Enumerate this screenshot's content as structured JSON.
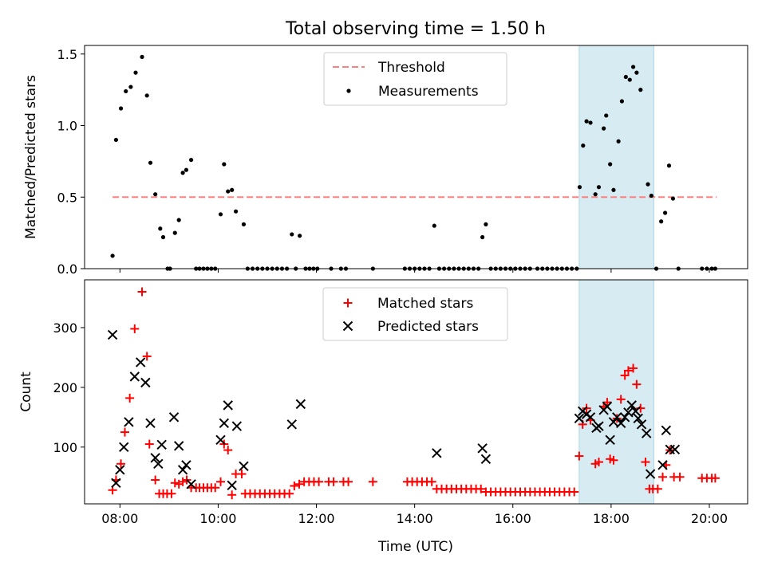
{
  "figure": {
    "title": "Total observing time = 1.50 h",
    "xlabel": "Time (UTC)",
    "xticks": [
      {
        "h": 8,
        "label": "08:00"
      },
      {
        "h": 10,
        "label": "10:00"
      },
      {
        "h": 12,
        "label": "12:00"
      },
      {
        "h": 14,
        "label": "14:00"
      },
      {
        "h": 16,
        "label": "16:00"
      },
      {
        "h": 18,
        "label": "18:00"
      },
      {
        "h": 20,
        "label": "20:00"
      }
    ],
    "xlim": [
      7.28,
      20.78
    ],
    "highlight": {
      "start": 17.35,
      "end": 18.87,
      "color": "#add8e6"
    }
  },
  "chart_data": [
    {
      "type": "scatter",
      "ylabel": "Matched/Predicted stars",
      "ylim": [
        0,
        1.56
      ],
      "yticks": [
        0.0,
        0.5,
        1.0,
        1.5
      ],
      "ytick_labels": [
        "0.0",
        "0.5",
        "1.0",
        "1.5"
      ],
      "legend": {
        "position": "upper-center",
        "threshold_label": "Threshold",
        "measurements_label": "Measurements"
      },
      "threshold": {
        "value": 0.5,
        "x_start": 7.85,
        "x_end": 20.15,
        "color": "#ff7f7f"
      },
      "measurements": [
        [
          7.85,
          0.09
        ],
        [
          7.92,
          0.9
        ],
        [
          8.02,
          1.12
        ],
        [
          8.12,
          1.24
        ],
        [
          8.22,
          1.27
        ],
        [
          8.32,
          1.37
        ],
        [
          8.45,
          1.48
        ],
        [
          8.55,
          1.21
        ],
        [
          8.62,
          0.74
        ],
        [
          8.72,
          0.52
        ],
        [
          8.82,
          0.28
        ],
        [
          8.88,
          0.22
        ],
        [
          8.97,
          0.0
        ],
        [
          9.02,
          0.0
        ],
        [
          9.12,
          0.25
        ],
        [
          9.2,
          0.34
        ],
        [
          9.28,
          0.67
        ],
        [
          9.35,
          0.69
        ],
        [
          9.45,
          0.76
        ],
        [
          9.55,
          0.0
        ],
        [
          9.62,
          0.0
        ],
        [
          9.7,
          0.0
        ],
        [
          9.78,
          0.0
        ],
        [
          9.86,
          0.0
        ],
        [
          9.94,
          0.0
        ],
        [
          10.05,
          0.38
        ],
        [
          10.12,
          0.73
        ],
        [
          10.2,
          0.54
        ],
        [
          10.28,
          0.55
        ],
        [
          10.36,
          0.4
        ],
        [
          10.52,
          0.31
        ],
        [
          10.6,
          0.0
        ],
        [
          10.7,
          0.0
        ],
        [
          10.8,
          0.0
        ],
        [
          10.9,
          0.0
        ],
        [
          11.0,
          0.0
        ],
        [
          11.1,
          0.0
        ],
        [
          11.2,
          0.0
        ],
        [
          11.3,
          0.0
        ],
        [
          11.4,
          0.0
        ],
        [
          11.5,
          0.24
        ],
        [
          11.58,
          0.0
        ],
        [
          11.66,
          0.23
        ],
        [
          11.78,
          0.0
        ],
        [
          11.86,
          0.0
        ],
        [
          11.94,
          0.0
        ],
        [
          12.02,
          0.0
        ],
        [
          12.3,
          0.0
        ],
        [
          12.5,
          0.0
        ],
        [
          12.6,
          0.0
        ],
        [
          13.15,
          0.0
        ],
        [
          13.8,
          0.0
        ],
        [
          13.9,
          0.0
        ],
        [
          14.0,
          0.0
        ],
        [
          14.1,
          0.0
        ],
        [
          14.2,
          0.0
        ],
        [
          14.3,
          0.0
        ],
        [
          14.4,
          0.3
        ],
        [
          14.5,
          0.0
        ],
        [
          14.6,
          0.0
        ],
        [
          14.7,
          0.0
        ],
        [
          14.8,
          0.0
        ],
        [
          14.9,
          0.0
        ],
        [
          15.0,
          0.0
        ],
        [
          15.1,
          0.0
        ],
        [
          15.2,
          0.0
        ],
        [
          15.3,
          0.0
        ],
        [
          15.38,
          0.22
        ],
        [
          15.45,
          0.31
        ],
        [
          15.55,
          0.0
        ],
        [
          15.65,
          0.0
        ],
        [
          15.75,
          0.0
        ],
        [
          15.85,
          0.0
        ],
        [
          15.95,
          0.0
        ],
        [
          16.05,
          0.0
        ],
        [
          16.15,
          0.0
        ],
        [
          16.25,
          0.0
        ],
        [
          16.35,
          0.0
        ],
        [
          16.5,
          0.0
        ],
        [
          16.6,
          0.0
        ],
        [
          16.7,
          0.0
        ],
        [
          16.8,
          0.0
        ],
        [
          16.9,
          0.0
        ],
        [
          17.0,
          0.0
        ],
        [
          17.1,
          0.0
        ],
        [
          17.2,
          0.0
        ],
        [
          17.3,
          0.0
        ],
        [
          17.36,
          0.57
        ],
        [
          17.43,
          0.86
        ],
        [
          17.5,
          1.03
        ],
        [
          17.58,
          1.02
        ],
        [
          17.68,
          0.52
        ],
        [
          17.75,
          0.57
        ],
        [
          17.85,
          0.98
        ],
        [
          17.9,
          1.07
        ],
        [
          17.98,
          0.73
        ],
        [
          18.05,
          0.55
        ],
        [
          18.15,
          0.89
        ],
        [
          18.22,
          1.17
        ],
        [
          18.3,
          1.34
        ],
        [
          18.38,
          1.32
        ],
        [
          18.45,
          1.41
        ],
        [
          18.52,
          1.37
        ],
        [
          18.6,
          1.25
        ],
        [
          18.75,
          0.59
        ],
        [
          18.82,
          0.51
        ],
        [
          18.92,
          0.0
        ],
        [
          19.02,
          0.33
        ],
        [
          19.1,
          0.39
        ],
        [
          19.18,
          0.72
        ],
        [
          19.26,
          0.49
        ],
        [
          19.37,
          0.0
        ],
        [
          19.85,
          0.0
        ],
        [
          19.95,
          0.0
        ],
        [
          20.05,
          0.0
        ],
        [
          20.12,
          0.0
        ]
      ]
    },
    {
      "type": "scatter",
      "ylabel": "Count",
      "ylim": [
        5,
        380
      ],
      "yticks": [
        100,
        200,
        300
      ],
      "ytick_labels": [
        "100",
        "200",
        "300"
      ],
      "legend": {
        "position": "upper-center"
      },
      "series": [
        {
          "name": "Matched stars",
          "marker": "plus",
          "color": "#ff0000",
          "points": [
            [
              7.85,
              28
            ],
            [
              7.92,
              45
            ],
            [
              8.02,
              72
            ],
            [
              8.1,
              125
            ],
            [
              8.2,
              182
            ],
            [
              8.3,
              298
            ],
            [
              8.45,
              360
            ],
            [
              8.55,
              252
            ],
            [
              8.6,
              105
            ],
            [
              8.72,
              45
            ],
            [
              8.8,
              22
            ],
            [
              8.88,
              22
            ],
            [
              8.96,
              22
            ],
            [
              9.05,
              22
            ],
            [
              9.12,
              40
            ],
            [
              9.2,
              38
            ],
            [
              9.28,
              42
            ],
            [
              9.36,
              45
            ],
            [
              9.45,
              32
            ],
            [
              9.55,
              32
            ],
            [
              9.62,
              32
            ],
            [
              9.7,
              32
            ],
            [
              9.78,
              32
            ],
            [
              9.86,
              32
            ],
            [
              9.94,
              32
            ],
            [
              10.05,
              42
            ],
            [
              10.12,
              105
            ],
            [
              10.2,
              95
            ],
            [
              10.28,
              20
            ],
            [
              10.36,
              55
            ],
            [
              10.48,
              55
            ],
            [
              10.55,
              22
            ],
            [
              10.65,
              22
            ],
            [
              10.75,
              22
            ],
            [
              10.85,
              22
            ],
            [
              10.95,
              22
            ],
            [
              11.05,
              22
            ],
            [
              11.15,
              22
            ],
            [
              11.25,
              22
            ],
            [
              11.35,
              22
            ],
            [
              11.45,
              22
            ],
            [
              11.55,
              35
            ],
            [
              11.65,
              38
            ],
            [
              11.75,
              42
            ],
            [
              11.85,
              42
            ],
            [
              11.95,
              42
            ],
            [
              12.05,
              42
            ],
            [
              12.25,
              42
            ],
            [
              12.35,
              42
            ],
            [
              12.55,
              42
            ],
            [
              12.65,
              42
            ],
            [
              13.15,
              42
            ],
            [
              13.85,
              42
            ],
            [
              13.95,
              42
            ],
            [
              14.05,
              42
            ],
            [
              14.15,
              42
            ],
            [
              14.25,
              42
            ],
            [
              14.35,
              42
            ],
            [
              14.45,
              30
            ],
            [
              14.55,
              30
            ],
            [
              14.65,
              30
            ],
            [
              14.75,
              30
            ],
            [
              14.85,
              30
            ],
            [
              14.95,
              30
            ],
            [
              15.05,
              30
            ],
            [
              15.15,
              30
            ],
            [
              15.25,
              30
            ],
            [
              15.35,
              30
            ],
            [
              15.45,
              25
            ],
            [
              15.55,
              25
            ],
            [
              15.65,
              25
            ],
            [
              15.75,
              25
            ],
            [
              15.85,
              25
            ],
            [
              15.95,
              25
            ],
            [
              16.05,
              25
            ],
            [
              16.15,
              25
            ],
            [
              16.25,
              25
            ],
            [
              16.35,
              25
            ],
            [
              16.45,
              25
            ],
            [
              16.55,
              25
            ],
            [
              16.65,
              25
            ],
            [
              16.75,
              25
            ],
            [
              16.85,
              25
            ],
            [
              16.95,
              25
            ],
            [
              17.05,
              25
            ],
            [
              17.15,
              25
            ],
            [
              17.25,
              25
            ],
            [
              17.35,
              85
            ],
            [
              17.42,
              138
            ],
            [
              17.5,
              165
            ],
            [
              17.58,
              145
            ],
            [
              17.68,
              72
            ],
            [
              17.75,
              75
            ],
            [
              17.85,
              168
            ],
            [
              17.92,
              175
            ],
            [
              17.98,
              80
            ],
            [
              18.05,
              78
            ],
            [
              18.12,
              148
            ],
            [
              18.2,
              180
            ],
            [
              18.28,
              220
            ],
            [
              18.35,
              228
            ],
            [
              18.45,
              232
            ],
            [
              18.52,
              205
            ],
            [
              18.6,
              165
            ],
            [
              18.7,
              75
            ],
            [
              18.78,
              30
            ],
            [
              18.85,
              30
            ],
            [
              18.95,
              30
            ],
            [
              19.05,
              50
            ],
            [
              19.12,
              70
            ],
            [
              19.2,
              95
            ],
            [
              19.28,
              50
            ],
            [
              19.4,
              50
            ],
            [
              19.85,
              48
            ],
            [
              19.95,
              48
            ],
            [
              20.05,
              48
            ],
            [
              20.12,
              48
            ]
          ]
        },
        {
          "name": "Predicted stars",
          "marker": "x",
          "color": "#000000",
          "points": [
            [
              7.85,
              288
            ],
            [
              7.92,
              40
            ],
            [
              8.0,
              62
            ],
            [
              8.08,
              100
            ],
            [
              8.18,
              142
            ],
            [
              8.3,
              218
            ],
            [
              8.42,
              242
            ],
            [
              8.52,
              208
            ],
            [
              8.62,
              140
            ],
            [
              8.72,
              82
            ],
            [
              8.78,
              72
            ],
            [
              8.85,
              104
            ],
            [
              9.1,
              150
            ],
            [
              9.2,
              102
            ],
            [
              9.28,
              62
            ],
            [
              9.35,
              70
            ],
            [
              9.45,
              38
            ],
            [
              10.05,
              112
            ],
            [
              10.12,
              140
            ],
            [
              10.2,
              170
            ],
            [
              10.28,
              36
            ],
            [
              10.38,
              135
            ],
            [
              10.52,
              68
            ],
            [
              11.5,
              138
            ],
            [
              11.68,
              172
            ],
            [
              14.45,
              90
            ],
            [
              15.38,
              98
            ],
            [
              15.45,
              80
            ],
            [
              17.35,
              148
            ],
            [
              17.42,
              160
            ],
            [
              17.5,
              155
            ],
            [
              17.58,
              150
            ],
            [
              17.7,
              132
            ],
            [
              17.75,
              135
            ],
            [
              17.85,
              162
            ],
            [
              17.92,
              168
            ],
            [
              17.98,
              112
            ],
            [
              18.05,
              142
            ],
            [
              18.12,
              150
            ],
            [
              18.2,
              140
            ],
            [
              18.28,
              150
            ],
            [
              18.35,
              158
            ],
            [
              18.42,
              170
            ],
            [
              18.5,
              160
            ],
            [
              18.55,
              148
            ],
            [
              18.62,
              138
            ],
            [
              18.72,
              123
            ],
            [
              18.8,
              55
            ],
            [
              19.05,
              70
            ],
            [
              19.12,
              128
            ],
            [
              19.2,
              96
            ],
            [
              19.3,
              96
            ]
          ]
        }
      ]
    }
  ]
}
